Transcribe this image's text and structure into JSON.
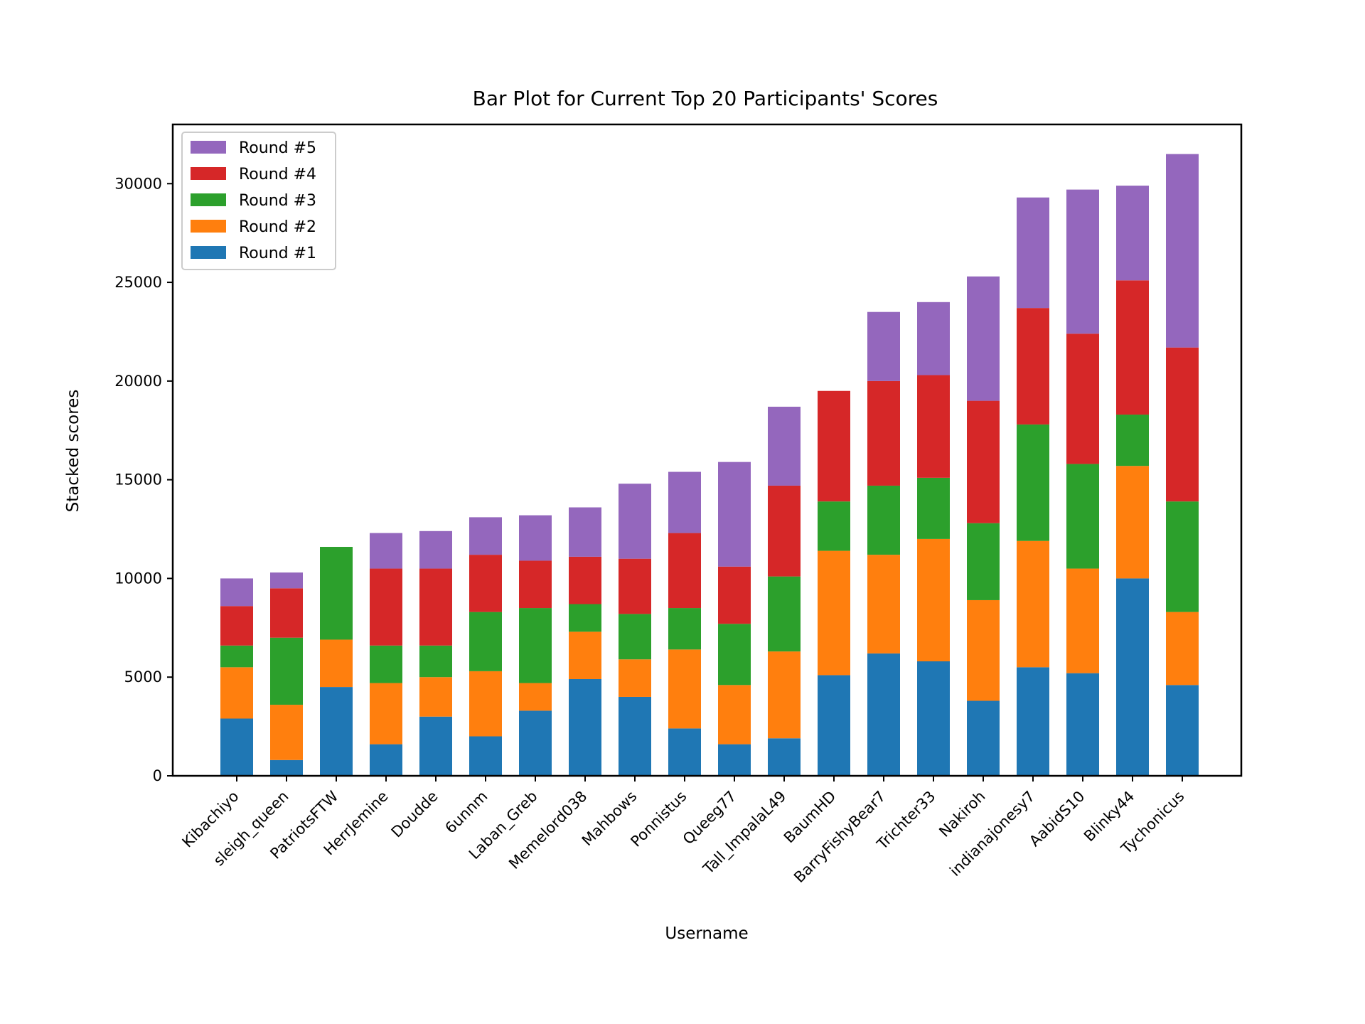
{
  "chart_data": {
    "type": "bar",
    "stacked": true,
    "title": "Bar Plot for Current Top 20 Participants' Scores",
    "xlabel": "Username",
    "ylabel": "Stacked scores",
    "ylim": [
      0,
      33000
    ],
    "yticks": [
      0,
      5000,
      10000,
      15000,
      20000,
      25000,
      30000
    ],
    "grid": false,
    "legend_position": "top-left",
    "categories": [
      "Kibachiyo",
      "sleigh_queen",
      "PatriotsFTW",
      "HerrJemine",
      "Doudde",
      "6unnm",
      "Laban_Greb",
      "Memelord038",
      "Mahbows",
      "Ponnistus",
      "Queeg77",
      "Tall_ImpalaL49",
      "BaumHD",
      "BarryFishyBear7",
      "Trichter33",
      "Nakiroh",
      "indianajonesy7",
      "AabidS10",
      "Blinky44",
      "Tychonicus"
    ],
    "series": [
      {
        "name": "Round #1",
        "color": "#1f77b4",
        "values": [
          2900,
          800,
          4500,
          1600,
          3000,
          2000,
          3300,
          4900,
          4000,
          2400,
          1600,
          1900,
          5100,
          6200,
          5800,
          3800,
          5500,
          5200,
          10000,
          4600
        ]
      },
      {
        "name": "Round #2",
        "color": "#ff7f0e",
        "values": [
          2600,
          2800,
          2400,
          3100,
          2000,
          3300,
          1400,
          2400,
          1900,
          4000,
          3000,
          4400,
          6300,
          5000,
          6200,
          5100,
          6400,
          5300,
          5700,
          3700
        ]
      },
      {
        "name": "Round #3",
        "color": "#2ca02c",
        "values": [
          1100,
          3400,
          4700,
          1900,
          1600,
          3000,
          3800,
          1400,
          2300,
          2100,
          3100,
          3800,
          2500,
          3500,
          3100,
          3900,
          5900,
          5300,
          2600,
          5600
        ]
      },
      {
        "name": "Round #4",
        "color": "#d62728",
        "values": [
          2000,
          2500,
          0,
          3900,
          3900,
          2900,
          2400,
          2400,
          2800,
          3800,
          2900,
          4600,
          5600,
          5300,
          5200,
          6200,
          5900,
          6600,
          6800,
          7800
        ]
      },
      {
        "name": "Round #5",
        "color": "#9467bd",
        "values": [
          1400,
          800,
          0,
          1800,
          1900,
          1900,
          2300,
          2500,
          3800,
          3100,
          5300,
          4000,
          0,
          3500,
          3700,
          6300,
          5600,
          7300,
          4800,
          9800
        ]
      }
    ]
  }
}
